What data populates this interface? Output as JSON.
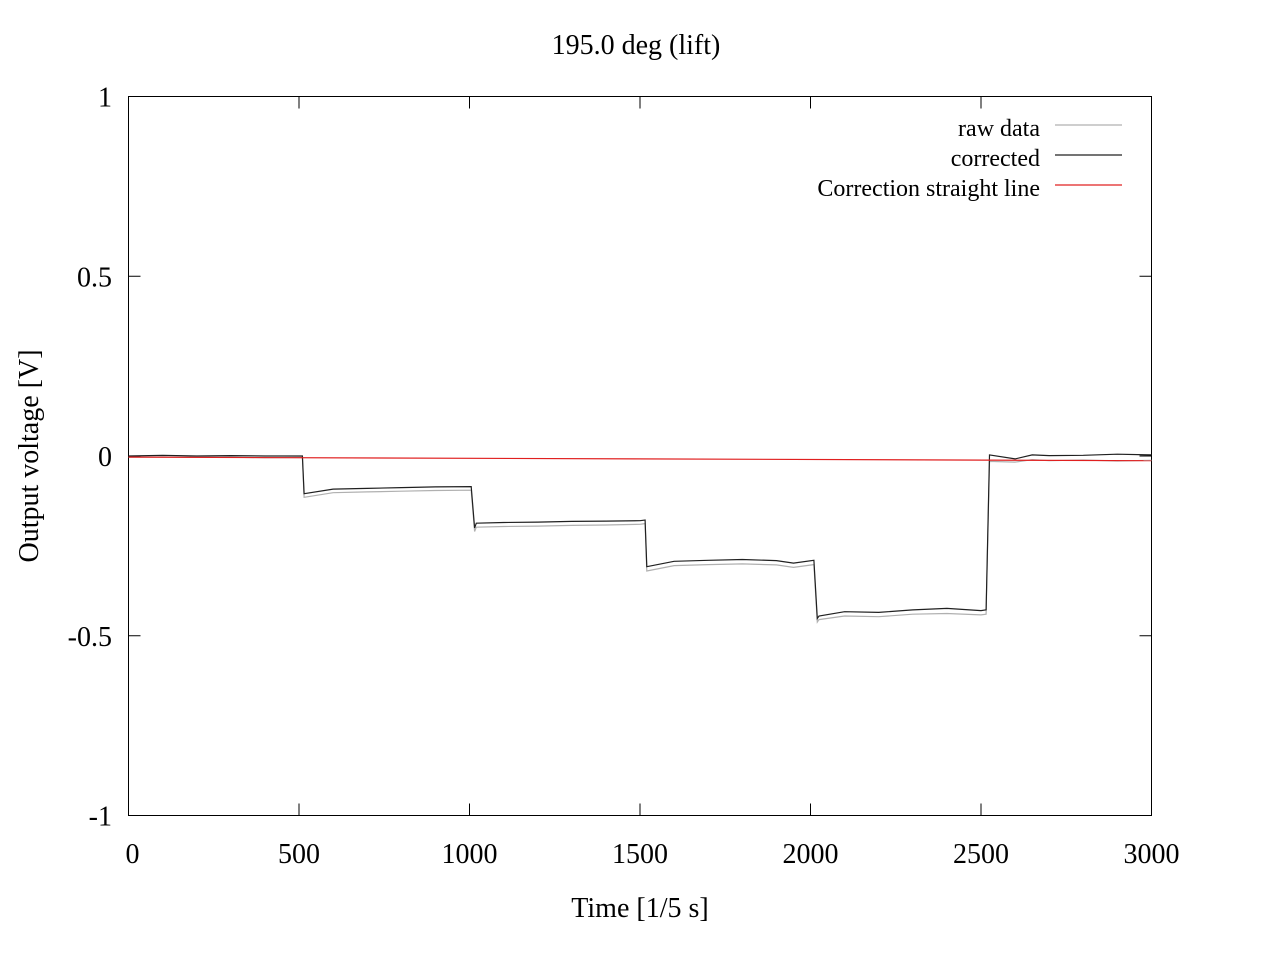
{
  "chart_data": {
    "type": "line",
    "title": "195.0 deg (lift)",
    "xlabel": "Time [1/5 s]",
    "ylabel": "Output voltage [V]",
    "xlim": [
      0,
      3000
    ],
    "ylim": [
      -1,
      1
    ],
    "xticks": [
      0,
      500,
      1000,
      1500,
      2000,
      2500,
      3000
    ],
    "xtick_labels": [
      "0",
      "500",
      "1000",
      "1500",
      "2000",
      "2500",
      "3000"
    ],
    "yticks": [
      1,
      0.5,
      0,
      -0.5,
      -1
    ],
    "ytick_labels": [
      "1",
      "0.5",
      "0",
      "-0.5",
      "-1"
    ],
    "grid": false,
    "legend_position": "top-right",
    "series": [
      {
        "name": "raw data",
        "color": "#b0b0b0",
        "x": [
          0,
          100,
          200,
          300,
          400,
          510,
          515,
          600,
          700,
          800,
          900,
          1005,
          1015,
          1020,
          1100,
          1200,
          1300,
          1400,
          1500,
          1515,
          1520,
          1600,
          1700,
          1800,
          1900,
          1950,
          2010,
          2020,
          2025,
          2100,
          2200,
          2300,
          2400,
          2500,
          2515,
          2525,
          2600,
          2650,
          2700,
          2800,
          2900,
          3000
        ],
        "y": [
          -0.003,
          -0.002,
          -0.004,
          -0.003,
          -0.005,
          -0.004,
          -0.115,
          -0.102,
          -0.1,
          -0.098,
          -0.096,
          -0.095,
          -0.21,
          -0.198,
          -0.196,
          -0.195,
          -0.193,
          -0.192,
          -0.19,
          -0.188,
          -0.32,
          -0.305,
          -0.302,
          -0.3,
          -0.303,
          -0.31,
          -0.302,
          -0.462,
          -0.455,
          -0.445,
          -0.447,
          -0.44,
          -0.438,
          -0.442,
          -0.44,
          -0.015,
          -0.017,
          -0.01,
          -0.013,
          -0.011,
          -0.014,
          -0.012
        ]
      },
      {
        "name": "corrected",
        "color": "#202020",
        "x": [
          0,
          100,
          200,
          300,
          400,
          510,
          515,
          600,
          700,
          800,
          900,
          1005,
          1015,
          1020,
          1100,
          1200,
          1300,
          1400,
          1500,
          1515,
          1520,
          1600,
          1700,
          1800,
          1900,
          1950,
          2010,
          2020,
          2025,
          2100,
          2200,
          2300,
          2400,
          2500,
          2515,
          2525,
          2600,
          2650,
          2700,
          2800,
          2900,
          3000
        ],
        "y": [
          0.0,
          0.002,
          0.0,
          0.001,
          0.0,
          0.0,
          -0.105,
          -0.092,
          -0.09,
          -0.088,
          -0.086,
          -0.085,
          -0.2,
          -0.187,
          -0.185,
          -0.184,
          -0.182,
          -0.181,
          -0.18,
          -0.178,
          -0.308,
          -0.293,
          -0.29,
          -0.288,
          -0.291,
          -0.298,
          -0.29,
          -0.452,
          -0.445,
          -0.433,
          -0.435,
          -0.428,
          -0.424,
          -0.43,
          -0.428,
          0.003,
          -0.008,
          0.003,
          0.001,
          0.002,
          0.005,
          0.003
        ]
      },
      {
        "name": "Correction straight line",
        "color": "#e02020",
        "x": [
          0,
          3000
        ],
        "y": [
          -0.003,
          -0.013
        ]
      }
    ]
  }
}
